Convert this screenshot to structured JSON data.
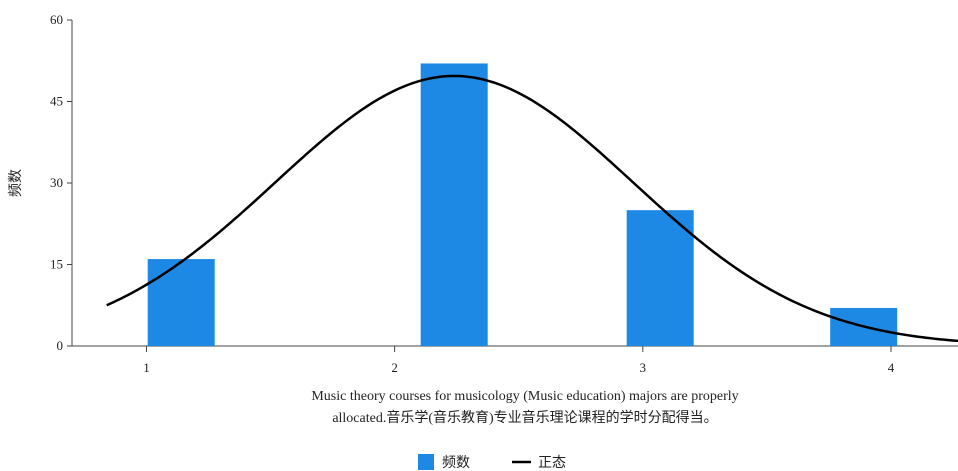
{
  "chart_data": {
    "type": "bar",
    "xlabel_lines": [
      "Music theory courses for musicology (Music education) majors are properly",
      "allocated.音乐学(音乐教育)专业音乐理论课程的学时分配得当。"
    ],
    "ylabel": "频数",
    "ylim": [
      0,
      60
    ],
    "yticks": [
      0,
      15,
      30,
      45,
      60
    ],
    "xlim": [
      0.7,
      4.27
    ],
    "xticks": [
      1,
      2,
      3,
      4
    ],
    "bars": [
      {
        "x": 1.14,
        "width": 0.27,
        "value": 16
      },
      {
        "x": 2.24,
        "width": 0.27,
        "value": 52
      },
      {
        "x": 3.07,
        "width": 0.27,
        "value": 25
      },
      {
        "x": 3.89,
        "width": 0.27,
        "value": 7
      }
    ],
    "series": [
      {
        "name": "频数",
        "type": "bar",
        "color": "#1e88e5"
      },
      {
        "name": "正态",
        "type": "line",
        "color": "#000000"
      }
    ],
    "normal_curve": {
      "mean": 2.24,
      "sd": 0.72,
      "peak": 49.7
    },
    "legend_position": "bottom-center",
    "grid": false
  }
}
